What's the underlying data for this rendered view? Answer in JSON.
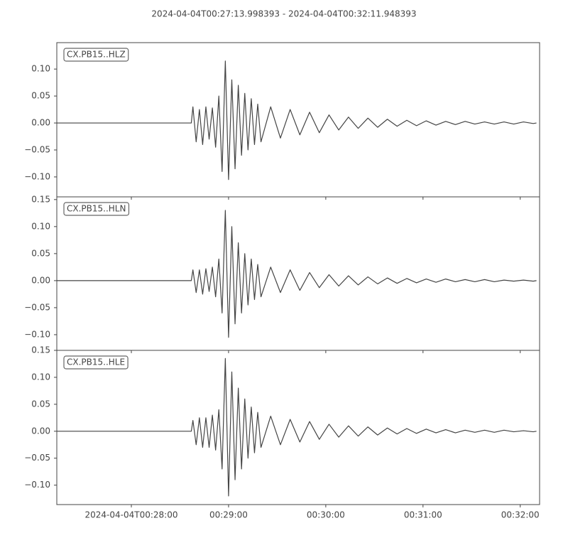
{
  "chart_data": [
    {
      "type": "line",
      "title": "2024-04-04T00:27:13.998393  -  2024-04-04T00:32:11.948393",
      "label": "CX.PB15..HLZ",
      "color": "#444444",
      "x": [
        "2024-04-04T00:27:14",
        "2024-04-04T00:28:37",
        "2024-04-04T00:28:38",
        "2024-04-04T00:28:40",
        "2024-04-04T00:28:42",
        "2024-04-04T00:28:44",
        "2024-04-04T00:28:46",
        "2024-04-04T00:28:48",
        "2024-04-04T00:28:50",
        "2024-04-04T00:28:52",
        "2024-04-04T00:28:54",
        "2024-04-04T00:28:56",
        "2024-04-04T00:28:58",
        "2024-04-04T00:29:00",
        "2024-04-04T00:29:02",
        "2024-04-04T00:29:04",
        "2024-04-04T00:29:06",
        "2024-04-04T00:29:08",
        "2024-04-04T00:29:10",
        "2024-04-04T00:29:12",
        "2024-04-04T00:29:14",
        "2024-04-04T00:29:16",
        "2024-04-04T00:29:18",
        "2024-04-04T00:29:20",
        "2024-04-04T00:29:26",
        "2024-04-04T00:29:32",
        "2024-04-04T00:29:38",
        "2024-04-04T00:29:44",
        "2024-04-04T00:29:50",
        "2024-04-04T00:29:56",
        "2024-04-04T00:30:02",
        "2024-04-04T00:30:08",
        "2024-04-04T00:30:14",
        "2024-04-04T00:30:20",
        "2024-04-04T00:30:26",
        "2024-04-04T00:30:32",
        "2024-04-04T00:30:38",
        "2024-04-04T00:30:44",
        "2024-04-04T00:30:50",
        "2024-04-04T00:30:56",
        "2024-04-04T00:31:02",
        "2024-04-04T00:31:08",
        "2024-04-04T00:31:14",
        "2024-04-04T00:31:20",
        "2024-04-04T00:31:26",
        "2024-04-04T00:31:32",
        "2024-04-04T00:31:38",
        "2024-04-04T00:31:44",
        "2024-04-04T00:31:50",
        "2024-04-04T00:31:56",
        "2024-04-04T00:32:02",
        "2024-04-04T00:32:08",
        "2024-04-04T00:32:10"
      ],
      "values": [
        0,
        0,
        0.03,
        -0.035,
        0.025,
        -0.04,
        0.03,
        -0.03,
        0.028,
        -0.045,
        0.05,
        -0.09,
        0.115,
        -0.105,
        0.08,
        -0.085,
        0.07,
        -0.06,
        0.055,
        -0.05,
        0.045,
        -0.04,
        0.035,
        -0.035,
        0.03,
        -0.028,
        0.025,
        -0.022,
        0.02,
        -0.018,
        0.015,
        -0.013,
        0.011,
        -0.01,
        0.009,
        -0.008,
        0.007,
        -0.006,
        0.005,
        -0.005,
        0.004,
        -0.004,
        0.003,
        -0.003,
        0.003,
        -0.002,
        0.002,
        -0.002,
        0.002,
        -0.002,
        0.002,
        -0.001,
        0
      ],
      "xlim": [
        "2024-04-04T00:27:13.998393",
        "2024-04-04T00:32:11.948393"
      ],
      "ylim": [
        -0.137,
        0.149
      ],
      "yticks": [
        {
          "value": -0.1,
          "label": "−0.10"
        },
        {
          "value": -0.05,
          "label": "−0.05"
        },
        {
          "value": 0,
          "label": "0.00"
        },
        {
          "value": 0.05,
          "label": "0.05"
        },
        {
          "value": 0.1,
          "label": "0.10"
        }
      ]
    },
    {
      "type": "line",
      "label": "CX.PB15..HLN",
      "color": "#444444",
      "x": [
        "2024-04-04T00:27:14",
        "2024-04-04T00:28:37",
        "2024-04-04T00:28:38",
        "2024-04-04T00:28:40",
        "2024-04-04T00:28:42",
        "2024-04-04T00:28:44",
        "2024-04-04T00:28:46",
        "2024-04-04T00:28:48",
        "2024-04-04T00:28:50",
        "2024-04-04T00:28:52",
        "2024-04-04T00:28:54",
        "2024-04-04T00:28:56",
        "2024-04-04T00:28:58",
        "2024-04-04T00:29:00",
        "2024-04-04T00:29:02",
        "2024-04-04T00:29:04",
        "2024-04-04T00:29:06",
        "2024-04-04T00:29:08",
        "2024-04-04T00:29:10",
        "2024-04-04T00:29:12",
        "2024-04-04T00:29:14",
        "2024-04-04T00:29:16",
        "2024-04-04T00:29:18",
        "2024-04-04T00:29:20",
        "2024-04-04T00:29:26",
        "2024-04-04T00:29:32",
        "2024-04-04T00:29:38",
        "2024-04-04T00:29:44",
        "2024-04-04T00:29:50",
        "2024-04-04T00:29:56",
        "2024-04-04T00:30:02",
        "2024-04-04T00:30:08",
        "2024-04-04T00:30:14",
        "2024-04-04T00:30:20",
        "2024-04-04T00:30:26",
        "2024-04-04T00:30:32",
        "2024-04-04T00:30:38",
        "2024-04-04T00:30:44",
        "2024-04-04T00:30:50",
        "2024-04-04T00:30:56",
        "2024-04-04T00:31:02",
        "2024-04-04T00:31:08",
        "2024-04-04T00:31:14",
        "2024-04-04T00:31:20",
        "2024-04-04T00:31:26",
        "2024-04-04T00:31:32",
        "2024-04-04T00:31:38",
        "2024-04-04T00:31:44",
        "2024-04-04T00:31:50",
        "2024-04-04T00:31:56",
        "2024-04-04T00:32:02",
        "2024-04-04T00:32:08",
        "2024-04-04T00:32:10"
      ],
      "values": [
        0,
        0,
        0.02,
        -0.022,
        0.02,
        -0.025,
        0.022,
        -0.02,
        0.025,
        -0.03,
        0.04,
        -0.06,
        0.13,
        -0.105,
        0.1,
        -0.08,
        0.07,
        -0.06,
        0.05,
        -0.045,
        0.04,
        -0.035,
        0.03,
        -0.03,
        0.025,
        -0.022,
        0.02,
        -0.018,
        0.015,
        -0.013,
        0.011,
        -0.01,
        0.009,
        -0.008,
        0.007,
        -0.006,
        0.005,
        -0.005,
        0.004,
        -0.004,
        0.003,
        -0.003,
        0.003,
        -0.002,
        0.002,
        -0.002,
        0.002,
        -0.002,
        0.001,
        -0.001,
        0.001,
        -0.001,
        0
      ],
      "xlim": [
        "2024-04-04T00:27:13.998393",
        "2024-04-04T00:32:11.948393"
      ],
      "ylim": [
        -0.129,
        0.155
      ],
      "yticks": [
        {
          "value": -0.1,
          "label": "−0.10"
        },
        {
          "value": -0.05,
          "label": "−0.05"
        },
        {
          "value": 0,
          "label": "0.00"
        },
        {
          "value": 0.05,
          "label": "0.05"
        },
        {
          "value": 0.1,
          "label": "0.10"
        },
        {
          "value": 0.15,
          "label": "0.15"
        }
      ]
    },
    {
      "type": "line",
      "label": "CX.PB15..HLE",
      "color": "#444444",
      "x": [
        "2024-04-04T00:27:14",
        "2024-04-04T00:28:37",
        "2024-04-04T00:28:38",
        "2024-04-04T00:28:40",
        "2024-04-04T00:28:42",
        "2024-04-04T00:28:44",
        "2024-04-04T00:28:46",
        "2024-04-04T00:28:48",
        "2024-04-04T00:28:50",
        "2024-04-04T00:28:52",
        "2024-04-04T00:28:54",
        "2024-04-04T00:28:56",
        "2024-04-04T00:28:58",
        "2024-04-04T00:29:00",
        "2024-04-04T00:29:02",
        "2024-04-04T00:29:04",
        "2024-04-04T00:29:06",
        "2024-04-04T00:29:08",
        "2024-04-04T00:29:10",
        "2024-04-04T00:29:12",
        "2024-04-04T00:29:14",
        "2024-04-04T00:29:16",
        "2024-04-04T00:29:18",
        "2024-04-04T00:29:20",
        "2024-04-04T00:29:26",
        "2024-04-04T00:29:32",
        "2024-04-04T00:29:38",
        "2024-04-04T00:29:44",
        "2024-04-04T00:29:50",
        "2024-04-04T00:29:56",
        "2024-04-04T00:30:02",
        "2024-04-04T00:30:08",
        "2024-04-04T00:30:14",
        "2024-04-04T00:30:20",
        "2024-04-04T00:30:26",
        "2024-04-04T00:30:32",
        "2024-04-04T00:30:38",
        "2024-04-04T00:30:44",
        "2024-04-04T00:30:50",
        "2024-04-04T00:30:56",
        "2024-04-04T00:31:02",
        "2024-04-04T00:31:08",
        "2024-04-04T00:31:14",
        "2024-04-04T00:31:20",
        "2024-04-04T00:31:26",
        "2024-04-04T00:31:32",
        "2024-04-04T00:31:38",
        "2024-04-04T00:31:44",
        "2024-04-04T00:31:50",
        "2024-04-04T00:31:56",
        "2024-04-04T00:32:02",
        "2024-04-04T00:32:08",
        "2024-04-04T00:32:10"
      ],
      "values": [
        0,
        0,
        0.02,
        -0.025,
        0.025,
        -0.03,
        0.025,
        -0.03,
        0.03,
        -0.035,
        0.04,
        -0.07,
        0.135,
        -0.12,
        0.11,
        -0.09,
        0.08,
        -0.07,
        0.06,
        -0.05,
        0.045,
        -0.04,
        0.035,
        -0.03,
        0.028,
        -0.025,
        0.022,
        -0.02,
        0.018,
        -0.015,
        0.013,
        -0.011,
        0.01,
        -0.009,
        0.008,
        -0.007,
        0.006,
        -0.005,
        0.005,
        -0.004,
        0.004,
        -0.003,
        0.003,
        -0.003,
        0.002,
        -0.002,
        0.002,
        -0.002,
        0.002,
        -0.001,
        0.001,
        -0.001,
        0
      ],
      "xlim": [
        "2024-04-04T00:27:13.998393",
        "2024-04-04T00:32:11.948393"
      ],
      "ylim": [
        -0.136,
        0.15
      ],
      "yticks": [
        {
          "value": -0.1,
          "label": "−0.10"
        },
        {
          "value": -0.05,
          "label": "−0.05"
        },
        {
          "value": 0,
          "label": "0.00"
        },
        {
          "value": 0.05,
          "label": "0.05"
        },
        {
          "value": 0.1,
          "label": "0.10"
        },
        {
          "value": 0.15,
          "label": "0.15"
        }
      ],
      "xticks": [
        {
          "value": "2024-04-04T00:28:00",
          "label": "2024-04-04T00:28:00"
        },
        {
          "value": "2024-04-04T00:29:00",
          "label": "00:29:00"
        },
        {
          "value": "2024-04-04T00:30:00",
          "label": "00:30:00"
        },
        {
          "value": "2024-04-04T00:31:00",
          "label": "00:31:00"
        },
        {
          "value": "2024-04-04T00:32:00",
          "label": "00:32:00"
        }
      ]
    }
  ]
}
